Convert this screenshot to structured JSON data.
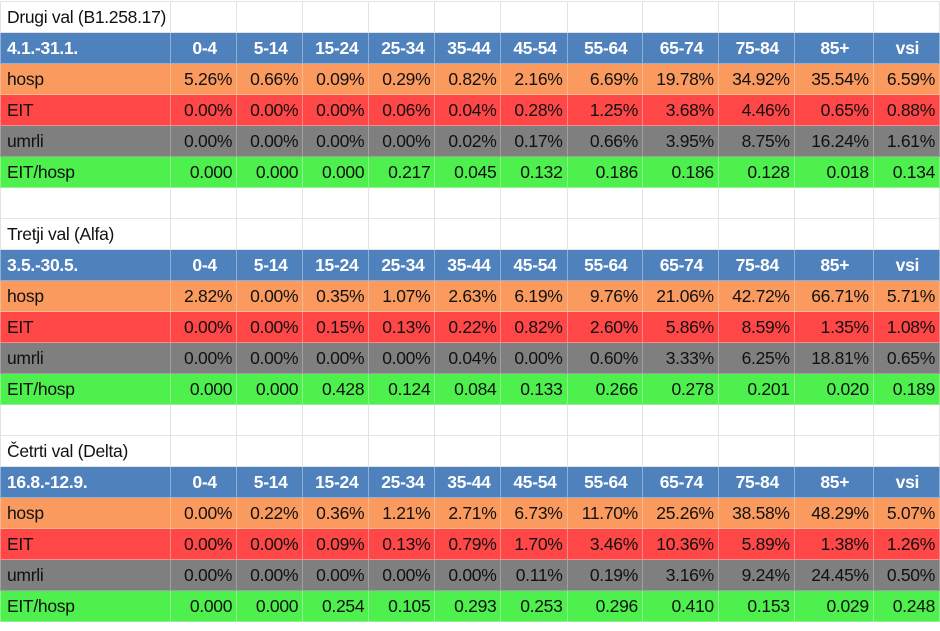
{
  "age_groups": [
    "0-4",
    "5-14",
    "15-24",
    "25-34",
    "35-44",
    "45-54",
    "55-64",
    "65-74",
    "75-84",
    "85+",
    "vsi"
  ],
  "colors": {
    "header": "#4f81bd",
    "hosp": "#fa9a5f",
    "EIT": "#ff4747",
    "umrli": "#7f7f7f",
    "EIT/hosp": "#4df04d"
  },
  "sections": [
    {
      "title": "Drugi val (B1.258.17)",
      "period": "4.1.-31.1.",
      "rows": [
        {
          "label": "hosp",
          "values": [
            "5.26%",
            "0.66%",
            "0.09%",
            "0.29%",
            "0.82%",
            "2.16%",
            "6.69%",
            "19.78%",
            "34.92%",
            "35.54%",
            "6.59%"
          ]
        },
        {
          "label": "EIT",
          "values": [
            "0.00%",
            "0.00%",
            "0.00%",
            "0.06%",
            "0.04%",
            "0.28%",
            "1.25%",
            "3.68%",
            "4.46%",
            "0.65%",
            "0.88%"
          ]
        },
        {
          "label": "umrli",
          "values": [
            "0.00%",
            "0.00%",
            "0.00%",
            "0.00%",
            "0.02%",
            "0.17%",
            "0.66%",
            "3.95%",
            "8.75%",
            "16.24%",
            "1.61%"
          ]
        },
        {
          "label": "EIT/hosp",
          "values": [
            "0.000",
            "0.000",
            "0.000",
            "0.217",
            "0.045",
            "0.132",
            "0.186",
            "0.186",
            "0.128",
            "0.018",
            "0.134"
          ]
        }
      ]
    },
    {
      "title": "Tretji val (Alfa)",
      "period": "3.5.-30.5.",
      "rows": [
        {
          "label": "hosp",
          "values": [
            "2.82%",
            "0.00%",
            "0.35%",
            "1.07%",
            "2.63%",
            "6.19%",
            "9.76%",
            "21.06%",
            "42.72%",
            "66.71%",
            "5.71%"
          ]
        },
        {
          "label": "EIT",
          "values": [
            "0.00%",
            "0.00%",
            "0.15%",
            "0.13%",
            "0.22%",
            "0.82%",
            "2.60%",
            "5.86%",
            "8.59%",
            "1.35%",
            "1.08%"
          ]
        },
        {
          "label": "umrli",
          "values": [
            "0.00%",
            "0.00%",
            "0.00%",
            "0.00%",
            "0.04%",
            "0.00%",
            "0.60%",
            "3.33%",
            "6.25%",
            "18.81%",
            "0.65%"
          ]
        },
        {
          "label": "EIT/hosp",
          "values": [
            "0.000",
            "0.000",
            "0.428",
            "0.124",
            "0.084",
            "0.133",
            "0.266",
            "0.278",
            "0.201",
            "0.020",
            "0.189"
          ]
        }
      ]
    },
    {
      "title": "Četrti val (Delta)",
      "period": "16.8.-12.9.",
      "rows": [
        {
          "label": "hosp",
          "values": [
            "0.00%",
            "0.22%",
            "0.36%",
            "1.21%",
            "2.71%",
            "6.73%",
            "11.70%",
            "25.26%",
            "38.58%",
            "48.29%",
            "5.07%"
          ]
        },
        {
          "label": "EIT",
          "values": [
            "0.00%",
            "0.00%",
            "0.09%",
            "0.13%",
            "0.79%",
            "1.70%",
            "3.46%",
            "10.36%",
            "5.89%",
            "1.38%",
            "1.26%"
          ]
        },
        {
          "label": "umrli",
          "values": [
            "0.00%",
            "0.00%",
            "0.00%",
            "0.00%",
            "0.00%",
            "0.11%",
            "0.19%",
            "3.16%",
            "9.24%",
            "24.45%",
            "0.50%"
          ]
        },
        {
          "label": "EIT/hosp",
          "values": [
            "0.000",
            "0.000",
            "0.254",
            "0.105",
            "0.293",
            "0.253",
            "0.296",
            "0.410",
            "0.153",
            "0.029",
            "0.248"
          ]
        }
      ]
    }
  ]
}
